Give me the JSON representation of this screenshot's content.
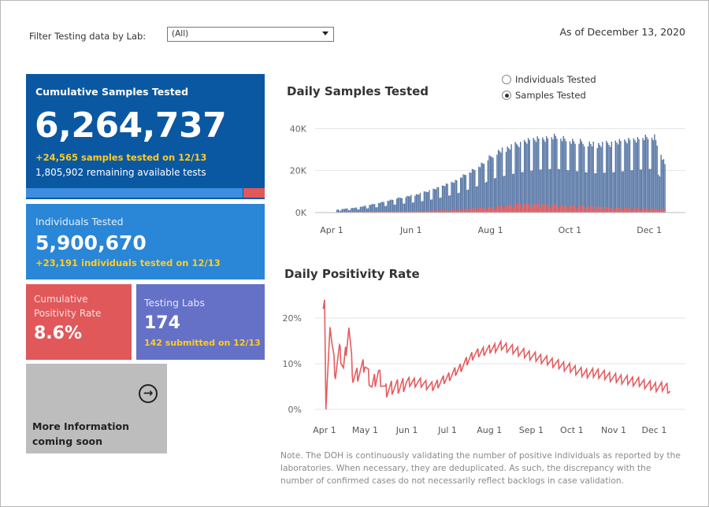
{
  "filter": {
    "label": "Filter Testing data by Lab:",
    "value": "(All)"
  },
  "as_of": "As of December 13, 2020",
  "cumulative": {
    "title": "Cumulative Samples Tested",
    "value": "6,264,737",
    "delta": "+24,565 samples tested on 12/13",
    "remaining": "1,805,902 remaining available tests",
    "used_fraction": 0.91
  },
  "individuals": {
    "title": "Individuals Tested",
    "value": "5,900,670",
    "delta": "+23,191  individuals  tested on 12/13"
  },
  "positivity": {
    "title": "Cumulative Positivity Rate",
    "value": "8.6%"
  },
  "labs": {
    "title": "Testing Labs",
    "value": "174",
    "delta": "142 submitted on 12/13"
  },
  "more": {
    "text": "More Information coming soon",
    "icon": "arrow-right-circle-icon"
  },
  "colors": {
    "blue": "#0a58a2",
    "light_blue": "#2a86d6",
    "red": "#e0585a",
    "purple": "#6571c6",
    "yellow": "#ffcc22",
    "bar_blue": "#5474a4",
    "bar_red": "#e45c5f"
  },
  "daily_samples": {
    "title": "Daily Samples Tested",
    "radio_options": [
      "Individuals Tested",
      "Samples Tested"
    ],
    "selected": "Samples Tested"
  },
  "daily_positivity": {
    "title": "Daily Positivity Rate"
  },
  "note": "Note. The DOH is continuously validating the number of positive individuals as reported by the laboratories. When necessary, they are deduplicated. As such, the discrepancy with the number of confirmed cases do not necessarily reflect backlogs in case validation.",
  "chart_data": [
    {
      "type": "bar",
      "title": "Daily Samples Tested",
      "x_ticks": [
        "Apr 1",
        "Jun 1",
        "Aug 1",
        "Oct 1",
        "Dec 1"
      ],
      "y_ticks": [
        "0K",
        "20K",
        "40K"
      ],
      "ylim": [
        0,
        45000
      ],
      "series": [
        {
          "name": "Samples Tested",
          "color": "#5474a4",
          "points": [
            [
              "2020-04-05",
              1500
            ],
            [
              "2020-04-20",
              2500
            ],
            [
              "2020-05-05",
              4500
            ],
            [
              "2020-05-20",
              7000
            ],
            [
              "2020-06-05",
              9000
            ],
            [
              "2020-06-20",
              12000
            ],
            [
              "2020-07-05",
              16000
            ],
            [
              "2020-07-20",
              22000
            ],
            [
              "2020-08-05",
              30000
            ],
            [
              "2020-08-20",
              34000
            ],
            [
              "2020-09-05",
              37000
            ],
            [
              "2020-09-20",
              38000
            ],
            [
              "2020-10-05",
              36000
            ],
            [
              "2020-10-20",
              34000
            ],
            [
              "2020-11-05",
              35000
            ],
            [
              "2020-11-20",
              37000
            ],
            [
              "2020-12-05",
              38000
            ],
            [
              "2020-12-13",
              24565
            ]
          ]
        },
        {
          "color": "#e45c5f",
          "points": [
            [
              "2020-04-05",
              200
            ],
            [
              "2020-05-05",
              400
            ],
            [
              "2020-06-05",
              700
            ],
            [
              "2020-07-05",
              1500
            ],
            [
              "2020-08-05",
              3000
            ],
            [
              "2020-08-20",
              4300
            ],
            [
              "2020-09-05",
              4300
            ],
            [
              "2020-10-05",
              3500
            ],
            [
              "2020-11-05",
              2500
            ],
            [
              "2020-12-05",
              2000
            ],
            [
              "2020-12-13",
              1800
            ]
          ]
        }
      ]
    },
    {
      "type": "line",
      "title": "Daily Positivity Rate",
      "x_ticks": [
        "Apr 1",
        "May 1",
        "Jun 1",
        "Jul 1",
        "Aug 1",
        "Sep 1",
        "Oct 1",
        "Nov 1",
        "Dec 1"
      ],
      "y_ticks": [
        "0%",
        "10%",
        "20%"
      ],
      "ylim": [
        0,
        25
      ],
      "series": [
        {
          "color": "#e45c5f",
          "points": [
            [
              "2020-03-31",
              22
            ],
            [
              "2020-04-01",
              24
            ],
            [
              "2020-04-02",
              0
            ],
            [
              "2020-04-05",
              18
            ],
            [
              "2020-04-09",
              8
            ],
            [
              "2020-04-12",
              13
            ],
            [
              "2020-04-15",
              9
            ],
            [
              "2020-04-19",
              18
            ],
            [
              "2020-04-22",
              7
            ],
            [
              "2020-04-26",
              8
            ],
            [
              "2020-05-01",
              10
            ],
            [
              "2020-05-06",
              5
            ],
            [
              "2020-05-11",
              8
            ],
            [
              "2020-05-16",
              4
            ],
            [
              "2020-05-21",
              5
            ],
            [
              "2020-05-26",
              5
            ],
            [
              "2020-06-01",
              6
            ],
            [
              "2020-06-10",
              6
            ],
            [
              "2020-06-20",
              5
            ],
            [
              "2020-07-01",
              7
            ],
            [
              "2020-07-10",
              9
            ],
            [
              "2020-07-20",
              12
            ],
            [
              "2020-07-30",
              13
            ],
            [
              "2020-08-10",
              14
            ],
            [
              "2020-08-20",
              13
            ],
            [
              "2020-08-30",
              12
            ],
            [
              "2020-09-10",
              11
            ],
            [
              "2020-09-20",
              10
            ],
            [
              "2020-10-01",
              9
            ],
            [
              "2020-10-10",
              8
            ],
            [
              "2020-10-20",
              8
            ],
            [
              "2020-11-01",
              7
            ],
            [
              "2020-11-10",
              6.5
            ],
            [
              "2020-11-20",
              6
            ],
            [
              "2020-12-01",
              5
            ],
            [
              "2020-12-10",
              5
            ],
            [
              "2020-12-13",
              4
            ]
          ]
        }
      ]
    }
  ]
}
